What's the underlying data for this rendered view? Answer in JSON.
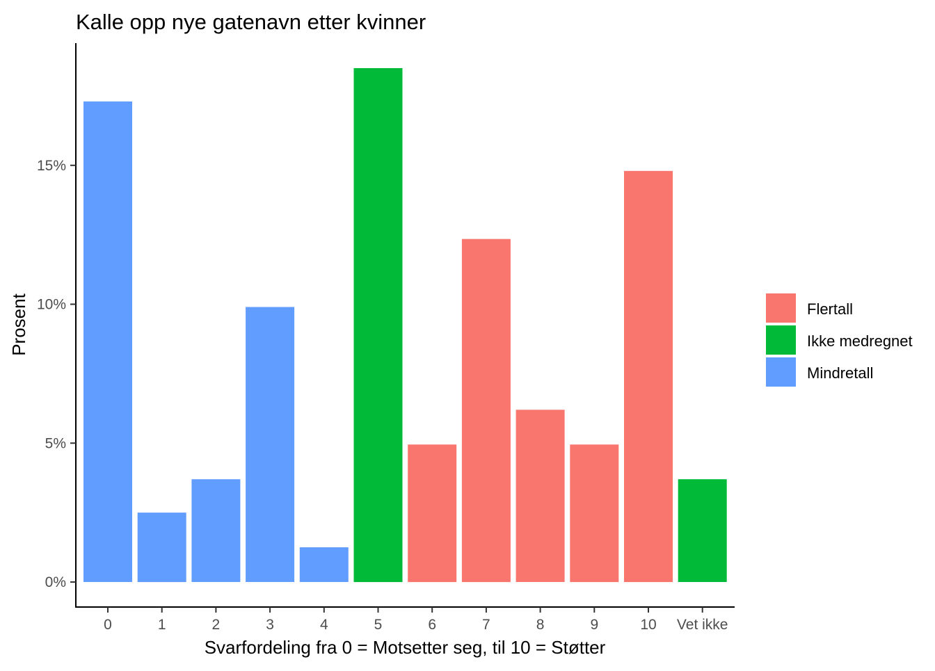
{
  "chart_data": {
    "type": "bar",
    "title": "Kalle opp nye gatenavn etter kvinner",
    "xlabel": "Svarfordeling fra 0 = Motsetter seg, til 10 = Støtter",
    "ylabel": "Prosent",
    "categories": [
      "0",
      "1",
      "2",
      "3",
      "4",
      "5",
      "6",
      "7",
      "8",
      "9",
      "10",
      "Vet ikke"
    ],
    "values": [
      17.3,
      2.5,
      3.7,
      9.9,
      1.25,
      18.5,
      4.95,
      12.35,
      6.2,
      4.95,
      14.8,
      3.7
    ],
    "groups": [
      "Mindretall",
      "Mindretall",
      "Mindretall",
      "Mindretall",
      "Mindretall",
      "Ikke medregnet",
      "Flertall",
      "Flertall",
      "Flertall",
      "Flertall",
      "Flertall",
      "Ikke medregnet"
    ],
    "yticks": [
      0,
      5,
      10,
      15
    ],
    "ytick_labels": [
      "0%",
      "5%",
      "10%",
      "15%"
    ],
    "ylim": [
      -0.9,
      19.4
    ],
    "grid": false,
    "legend": {
      "placement": "right",
      "entries": [
        {
          "name": "Flertall",
          "color": "#F8766D"
        },
        {
          "name": "Ikke medregnet",
          "color": "#00BA38"
        },
        {
          "name": "Mindretall",
          "color": "#619CFF"
        }
      ]
    }
  }
}
